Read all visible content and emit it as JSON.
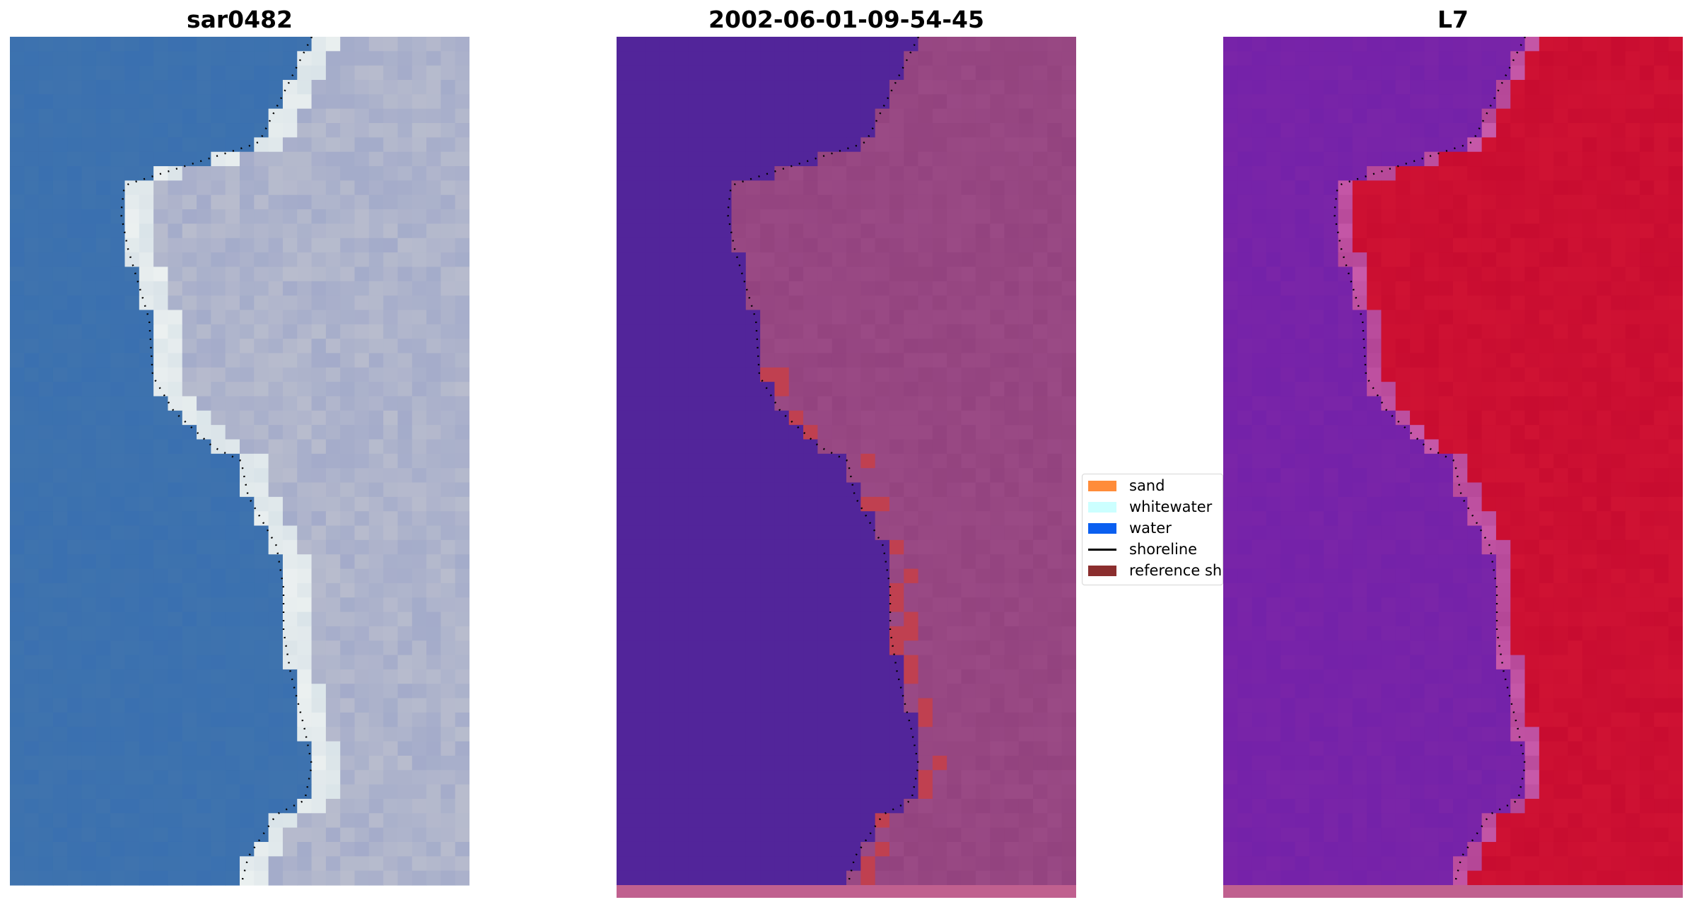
{
  "panels": [
    {
      "title": "sar0482",
      "kind": "rgb"
    },
    {
      "title": "2002-06-01-09-54-45",
      "kind": "classified"
    },
    {
      "title": "L7",
      "kind": "index"
    }
  ],
  "legend": {
    "items": [
      {
        "label": "sand",
        "color": "#ff8c3a",
        "icon": "patch"
      },
      {
        "label": "whitewater",
        "color": "#ccffff",
        "icon": "patch"
      },
      {
        "label": "water",
        "color": "#0a5ff0",
        "icon": "patch"
      },
      {
        "label": "shoreline",
        "color": "#000000",
        "icon": "line"
      },
      {
        "label": "reference shoreline",
        "color": "#8b2e2e",
        "icon": "patch"
      }
    ]
  },
  "colors": {
    "water_rgb": "#3a70b0",
    "land_rgb": "#b8bccd",
    "water_class": "#52259a",
    "land_class": "#9a4a85",
    "buffer_band": "#c04050",
    "index_low": "#7a25a8",
    "index_high": "#c80c30",
    "bottom_strip": "#c0608f"
  }
}
